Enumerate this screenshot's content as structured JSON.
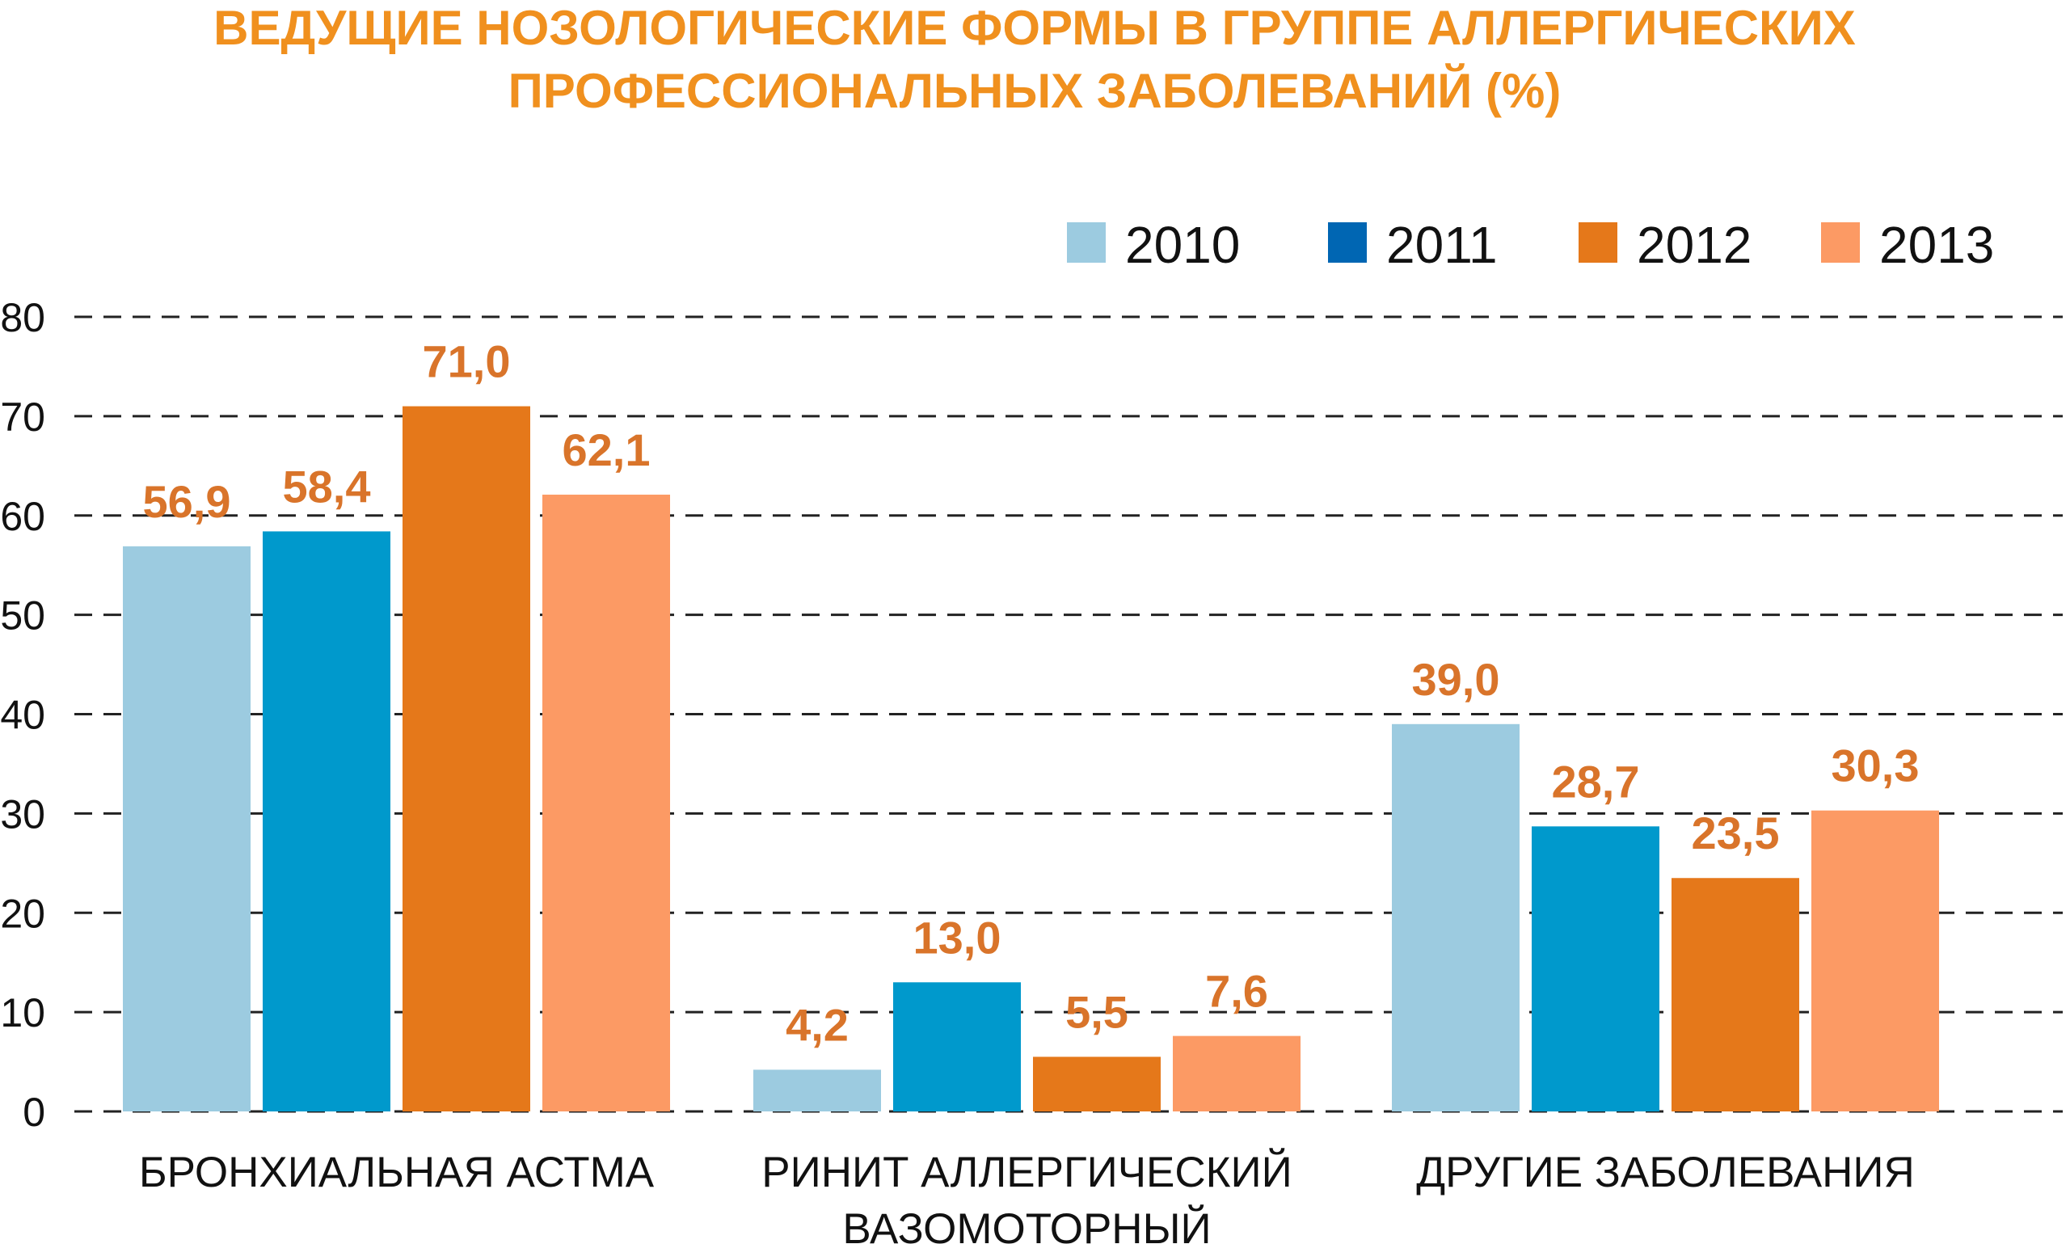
{
  "chart_data": {
    "type": "bar",
    "title_lines": [
      "ВЕДУЩИЕ НОЗОЛОГИЧЕСКИЕ ФОРМЫ В ГРУППЕ АЛЛЕРГИЧЕСКИХ",
      "ПРОФЕССИОНАЛЬНЫХ ЗАБОЛЕВАНИЙ (%)"
    ],
    "categories": [
      [
        "БРОНХИАЛЬНАЯ АСТМА"
      ],
      [
        "РИНИТ АЛЛЕРГИЧЕСКИЙ",
        "ВАЗОМОТОРНЫЙ"
      ],
      [
        "ДРУГИЕ ЗАБОЛЕВАНИЯ"
      ]
    ],
    "series": [
      {
        "name": "2010",
        "color": "#9ccbe0",
        "values": [
          56.9,
          4.2,
          39.0
        ],
        "labels": [
          "56,9",
          "4,2",
          "39,0"
        ]
      },
      {
        "name": "2011",
        "color": "#0099cc",
        "legend_color": "#0066b3",
        "values": [
          58.4,
          13.0,
          28.7
        ],
        "labels": [
          "58,4",
          "13,0",
          "28,7"
        ]
      },
      {
        "name": "2012",
        "color": "#e5781a",
        "values": [
          71.0,
          5.5,
          23.5
        ],
        "labels": [
          "71,0",
          "5,5",
          "23,5"
        ]
      },
      {
        "name": "2013",
        "color": "#fc9a64",
        "values": [
          62.1,
          7.6,
          30.3
        ],
        "labels": [
          "62,1",
          "7,6",
          "30,3"
        ]
      }
    ],
    "y_ticks": [
      "0",
      "10",
      "20",
      "30",
      "40",
      "50",
      "60",
      "70",
      "80"
    ],
    "ylim": [
      0,
      80
    ],
    "grid": true,
    "grid_style": "dashed",
    "legend_position": "top-right",
    "title_color": "#f0901e",
    "value_label_color": "#d9742a"
  }
}
